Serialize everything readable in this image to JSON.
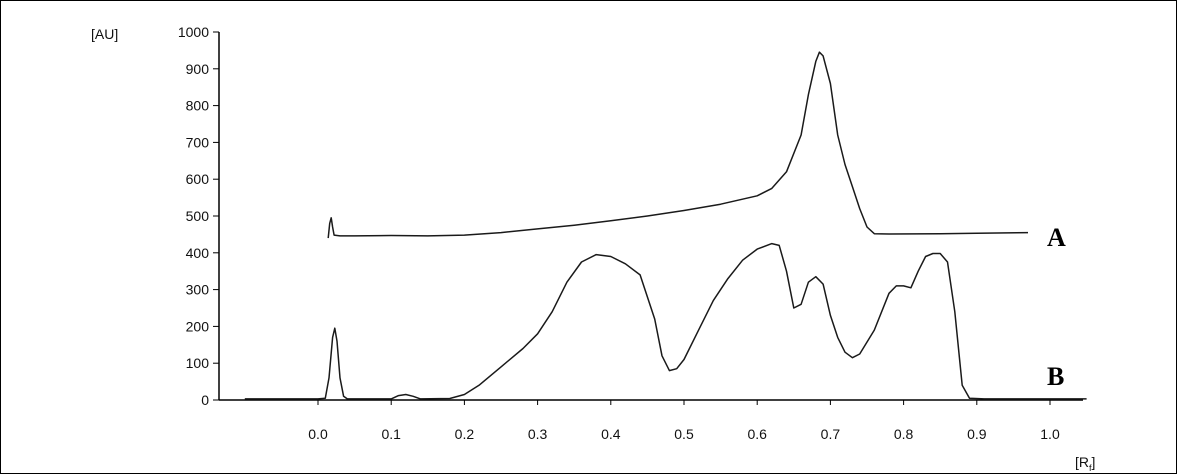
{
  "chart_data": {
    "type": "line",
    "y_unit_label": "[AU]",
    "x_unit_label": "[R",
    "x_unit_sub": "f",
    "x_unit_close": "]",
    "ylim": [
      0,
      1000
    ],
    "xlim": [
      -0.1,
      1.05
    ],
    "y_ticks": [
      0,
      100,
      200,
      300,
      400,
      500,
      600,
      700,
      800,
      900,
      1000
    ],
    "x_ticks": [
      "0.0",
      "0.1",
      "0.2",
      "0.3",
      "0.4",
      "0.5",
      "0.6",
      "0.7",
      "0.8",
      "0.9",
      "1.0"
    ],
    "grid": false,
    "series": [
      {
        "name": "A",
        "points": [
          [
            0.014,
            440
          ],
          [
            0.016,
            480
          ],
          [
            0.018,
            495
          ],
          [
            0.02,
            470
          ],
          [
            0.022,
            448
          ],
          [
            0.03,
            446
          ],
          [
            0.05,
            446
          ],
          [
            0.1,
            447
          ],
          [
            0.15,
            446
          ],
          [
            0.2,
            448
          ],
          [
            0.25,
            455
          ],
          [
            0.3,
            465
          ],
          [
            0.35,
            475
          ],
          [
            0.4,
            487
          ],
          [
            0.45,
            500
          ],
          [
            0.5,
            515
          ],
          [
            0.55,
            532
          ],
          [
            0.6,
            555
          ],
          [
            0.62,
            575
          ],
          [
            0.64,
            620
          ],
          [
            0.66,
            720
          ],
          [
            0.67,
            830
          ],
          [
            0.68,
            920
          ],
          [
            0.685,
            945
          ],
          [
            0.69,
            935
          ],
          [
            0.7,
            860
          ],
          [
            0.71,
            720
          ],
          [
            0.72,
            640
          ],
          [
            0.73,
            580
          ],
          [
            0.74,
            520
          ],
          [
            0.75,
            470
          ],
          [
            0.76,
            452
          ],
          [
            0.78,
            451
          ],
          [
            0.85,
            452
          ],
          [
            0.9,
            453
          ],
          [
            0.97,
            455
          ]
        ]
      },
      {
        "name": "B",
        "points": [
          [
            -0.1,
            3
          ],
          [
            0.0,
            3
          ],
          [
            0.01,
            5
          ],
          [
            0.015,
            60
          ],
          [
            0.02,
            170
          ],
          [
            0.023,
            195
          ],
          [
            0.026,
            160
          ],
          [
            0.03,
            60
          ],
          [
            0.035,
            10
          ],
          [
            0.04,
            3
          ],
          [
            0.06,
            3
          ],
          [
            0.1,
            3
          ],
          [
            0.11,
            12
          ],
          [
            0.12,
            15
          ],
          [
            0.13,
            10
          ],
          [
            0.14,
            3
          ],
          [
            0.18,
            4
          ],
          [
            0.2,
            15
          ],
          [
            0.22,
            40
          ],
          [
            0.25,
            90
          ],
          [
            0.28,
            140
          ],
          [
            0.3,
            180
          ],
          [
            0.32,
            240
          ],
          [
            0.34,
            320
          ],
          [
            0.36,
            375
          ],
          [
            0.38,
            395
          ],
          [
            0.4,
            390
          ],
          [
            0.42,
            370
          ],
          [
            0.44,
            340
          ],
          [
            0.46,
            220
          ],
          [
            0.47,
            120
          ],
          [
            0.48,
            80
          ],
          [
            0.49,
            85
          ],
          [
            0.5,
            110
          ],
          [
            0.52,
            190
          ],
          [
            0.54,
            270
          ],
          [
            0.56,
            330
          ],
          [
            0.58,
            380
          ],
          [
            0.6,
            410
          ],
          [
            0.62,
            425
          ],
          [
            0.63,
            420
          ],
          [
            0.64,
            350
          ],
          [
            0.65,
            250
          ],
          [
            0.66,
            260
          ],
          [
            0.67,
            320
          ],
          [
            0.68,
            335
          ],
          [
            0.69,
            315
          ],
          [
            0.7,
            230
          ],
          [
            0.71,
            170
          ],
          [
            0.72,
            130
          ],
          [
            0.73,
            115
          ],
          [
            0.74,
            125
          ],
          [
            0.76,
            190
          ],
          [
            0.78,
            290
          ],
          [
            0.79,
            310
          ],
          [
            0.8,
            310
          ],
          [
            0.81,
            305
          ],
          [
            0.82,
            350
          ],
          [
            0.83,
            390
          ],
          [
            0.84,
            398
          ],
          [
            0.85,
            398
          ],
          [
            0.86,
            375
          ],
          [
            0.87,
            240
          ],
          [
            0.88,
            40
          ],
          [
            0.89,
            5
          ],
          [
            0.91,
            3
          ],
          [
            1.05,
            3
          ]
        ]
      }
    ],
    "series_labels": [
      "A",
      "B"
    ]
  }
}
